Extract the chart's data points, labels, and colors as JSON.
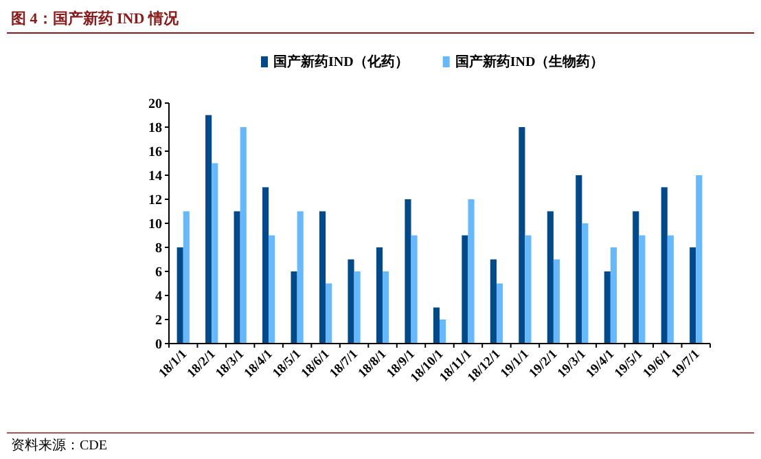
{
  "chart_data": {
    "type": "bar",
    "title": "图 4：国产新药 IND 情况",
    "categories": [
      "18/1/1",
      "18/2/1",
      "18/3/1",
      "18/4/1",
      "18/5/1",
      "18/6/1",
      "18/7/1",
      "18/8/1",
      "18/9/1",
      "18/10/1",
      "18/11/1",
      "18/12/1",
      "19/1/1",
      "19/2/1",
      "19/3/1",
      "19/4/1",
      "19/5/1",
      "19/6/1",
      "19/7/1"
    ],
    "series": [
      {
        "name": "国产新药IND（化药）",
        "color": "#004a8c",
        "values": [
          8,
          19,
          11,
          13,
          6,
          11,
          7,
          8,
          12,
          3,
          9,
          7,
          18,
          11,
          14,
          6,
          11,
          13,
          8
        ]
      },
      {
        "name": "国产新药IND（生物药）",
        "color": "#66b8ff",
        "values": [
          11,
          15,
          18,
          9,
          11,
          5,
          6,
          6,
          9,
          2,
          12,
          5,
          9,
          7,
          10,
          8,
          9,
          9,
          14
        ]
      }
    ],
    "ylim": [
      0,
      20
    ],
    "yticks": [
      0,
      2,
      4,
      6,
      8,
      10,
      12,
      14,
      16,
      18,
      20
    ],
    "grid": false,
    "legend": "top",
    "annotations": [
      "资料来源：CDE"
    ]
  }
}
